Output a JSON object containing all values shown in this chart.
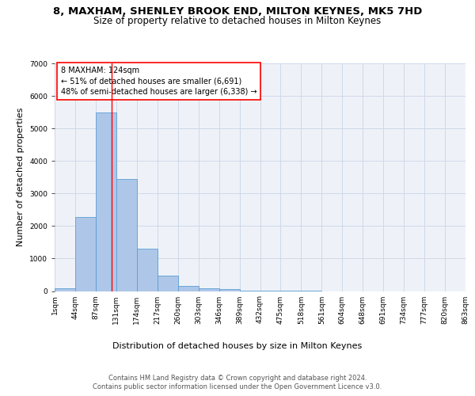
{
  "title": "8, MAXHAM, SHENLEY BROOK END, MILTON KEYNES, MK5 7HD",
  "subtitle": "Size of property relative to detached houses in Milton Keynes",
  "xlabel": "Distribution of detached houses by size in Milton Keynes",
  "ylabel": "Number of detached properties",
  "footer_line1": "Contains HM Land Registry data © Crown copyright and database right 2024.",
  "footer_line2": "Contains public sector information licensed under the Open Government Licence v3.0.",
  "bin_labels": [
    "1sqm",
    "44sqm",
    "87sqm",
    "131sqm",
    "174sqm",
    "217sqm",
    "260sqm",
    "303sqm",
    "346sqm",
    "389sqm",
    "432sqm",
    "475sqm",
    "518sqm",
    "561sqm",
    "604sqm",
    "648sqm",
    "691sqm",
    "734sqm",
    "777sqm",
    "820sqm",
    "863sqm"
  ],
  "bar_values": [
    80,
    2280,
    5480,
    3450,
    1310,
    470,
    160,
    90,
    50,
    20,
    5,
    2,
    1,
    0,
    0,
    0,
    0,
    0,
    0,
    0
  ],
  "bar_color": "#aec6e8",
  "bar_edge_color": "#5a9fd4",
  "ylim_max": 7000,
  "ytick_step": 1000,
  "red_line_x": 2.79,
  "annotation_text": "8 MAXHAM: 124sqm\n← 51% of detached houses are smaller (6,691)\n48% of semi-detached houses are larger (6,338) →",
  "grid_color": "#d0d8e8",
  "background_color": "#eef2f8",
  "title_fontsize": 9.5,
  "subtitle_fontsize": 8.5,
  "axis_label_fontsize": 8,
  "tick_fontsize": 6.5,
  "annotation_fontsize": 7,
  "footer_fontsize": 6
}
